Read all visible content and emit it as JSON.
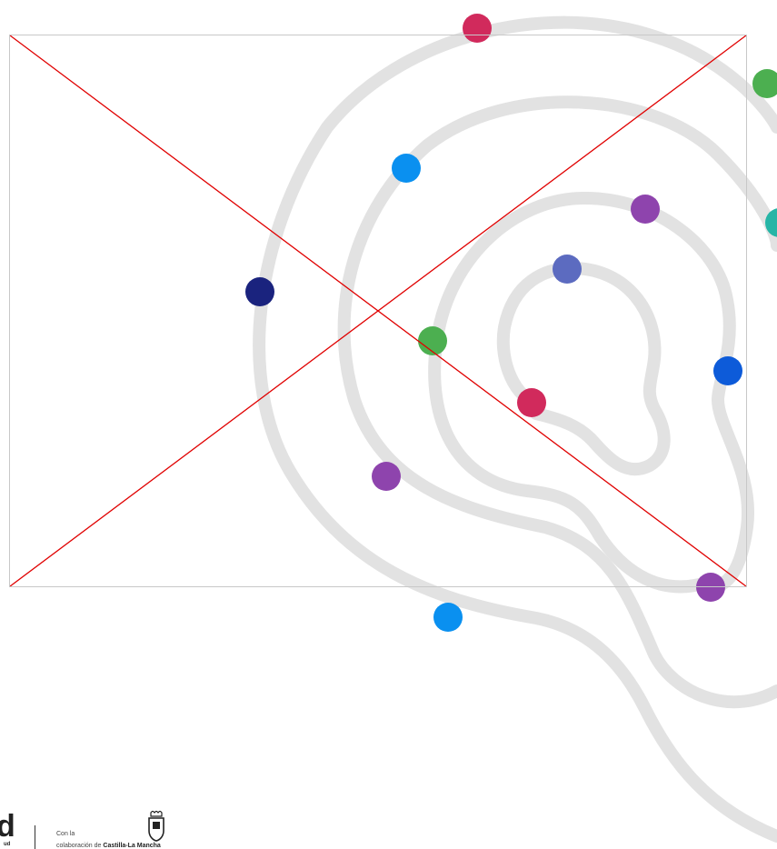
{
  "image_placeholder": {
    "state": "broken-image",
    "frame_color": "#c8c8c8",
    "cross_color": "#e00000"
  },
  "decoration": {
    "spiral_color": "#e2e2e2",
    "dot_colors": {
      "crimson": "#d12a5c",
      "green": "#4caf50",
      "teal": "#26b5a6",
      "sky_blue": "#0a90f0",
      "purple": "#8e44ad",
      "indigo": "#5c6bc0",
      "navy": "#1a237e",
      "royal_blue": "#0d5bd9"
    }
  },
  "footer": {
    "brand_letter": "d",
    "brand_sub": "ud",
    "collab_prefix_line1": "Con la",
    "collab_prefix_line2": "colaboración de",
    "partner_name": "Castilla-La Mancha",
    "crest_icon": "coat-of-arms-icon"
  }
}
